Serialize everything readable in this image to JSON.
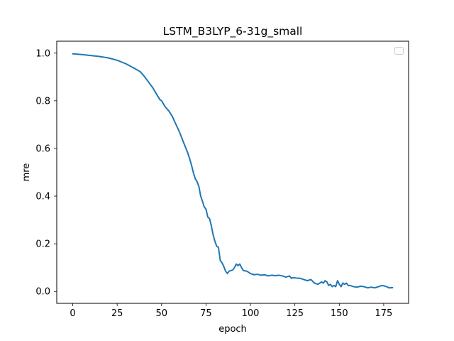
{
  "chart_data": {
    "type": "line",
    "title": "LSTM_B3LYP_6-31g_small",
    "xlabel": "epoch",
    "ylabel": "mre",
    "xlim": [
      -9,
      189
    ],
    "ylim": [
      -0.05,
      1.05
    ],
    "xticks": [
      0,
      25,
      50,
      75,
      100,
      125,
      150,
      175
    ],
    "yticks": [
      0.0,
      0.2,
      0.4,
      0.6,
      0.8,
      1.0
    ],
    "ytick_labels": [
      "0.0",
      "0.2",
      "0.4",
      "0.6",
      "0.8",
      "1.0"
    ],
    "grid": false,
    "legend": {
      "placement": "top-right",
      "entries": []
    },
    "series_color": "#1f77b4",
    "series": [
      {
        "name": "",
        "points": [
          [
            0,
            0.997
          ],
          [
            5,
            0.994
          ],
          [
            10,
            0.99
          ],
          [
            15,
            0.986
          ],
          [
            20,
            0.98
          ],
          [
            25,
            0.97
          ],
          [
            30,
            0.955
          ],
          [
            35,
            0.935
          ],
          [
            38,
            0.922
          ],
          [
            40,
            0.905
          ],
          [
            43,
            0.875
          ],
          [
            45,
            0.855
          ],
          [
            47,
            0.83
          ],
          [
            49,
            0.805
          ],
          [
            50,
            0.8
          ],
          [
            52,
            0.775
          ],
          [
            54,
            0.758
          ],
          [
            56,
            0.735
          ],
          [
            58,
            0.702
          ],
          [
            60,
            0.67
          ],
          [
            62,
            0.632
          ],
          [
            64,
            0.595
          ],
          [
            65,
            0.575
          ],
          [
            66,
            0.552
          ],
          [
            67,
            0.525
          ],
          [
            68,
            0.495
          ],
          [
            69,
            0.472
          ],
          [
            70,
            0.46
          ],
          [
            71,
            0.44
          ],
          [
            72,
            0.4
          ],
          [
            73,
            0.378
          ],
          [
            74,
            0.355
          ],
          [
            75,
            0.345
          ],
          [
            76,
            0.312
          ],
          [
            77,
            0.305
          ],
          [
            78,
            0.275
          ],
          [
            79,
            0.238
          ],
          [
            80,
            0.21
          ],
          [
            81,
            0.19
          ],
          [
            82,
            0.185
          ],
          [
            83,
            0.13
          ],
          [
            84,
            0.12
          ],
          [
            85,
            0.105
          ],
          [
            86,
            0.085
          ],
          [
            87,
            0.075
          ],
          [
            88,
            0.085
          ],
          [
            90,
            0.09
          ],
          [
            91,
            0.1
          ],
          [
            92,
            0.115
          ],
          [
            93,
            0.108
          ],
          [
            94,
            0.115
          ],
          [
            95,
            0.1
          ],
          [
            96,
            0.088
          ],
          [
            98,
            0.085
          ],
          [
            100,
            0.075
          ],
          [
            102,
            0.07
          ],
          [
            104,
            0.072
          ],
          [
            106,
            0.068
          ],
          [
            108,
            0.07
          ],
          [
            110,
            0.065
          ],
          [
            112,
            0.068
          ],
          [
            114,
            0.066
          ],
          [
            116,
            0.068
          ],
          [
            118,
            0.065
          ],
          [
            120,
            0.06
          ],
          [
            122,
            0.065
          ],
          [
            123,
            0.055
          ],
          [
            124,
            0.058
          ],
          [
            126,
            0.056
          ],
          [
            128,
            0.055
          ],
          [
            130,
            0.05
          ],
          [
            132,
            0.045
          ],
          [
            134,
            0.05
          ],
          [
            136,
            0.035
          ],
          [
            138,
            0.03
          ],
          [
            140,
            0.04
          ],
          [
            141,
            0.035
          ],
          [
            142,
            0.045
          ],
          [
            143,
            0.04
          ],
          [
            144,
            0.025
          ],
          [
            145,
            0.03
          ],
          [
            146,
            0.02
          ],
          [
            147,
            0.025
          ],
          [
            148,
            0.02
          ],
          [
            149,
            0.045
          ],
          [
            150,
            0.03
          ],
          [
            151,
            0.02
          ],
          [
            152,
            0.035
          ],
          [
            153,
            0.03
          ],
          [
            154,
            0.035
          ],
          [
            155,
            0.025
          ],
          [
            156,
            0.025
          ],
          [
            158,
            0.02
          ],
          [
            160,
            0.018
          ],
          [
            162,
            0.022
          ],
          [
            164,
            0.02
          ],
          [
            166,
            0.015
          ],
          [
            168,
            0.018
          ],
          [
            170,
            0.015
          ],
          [
            172,
            0.02
          ],
          [
            174,
            0.025
          ],
          [
            176,
            0.022
          ],
          [
            178,
            0.015
          ],
          [
            180,
            0.016
          ]
        ]
      }
    ]
  }
}
